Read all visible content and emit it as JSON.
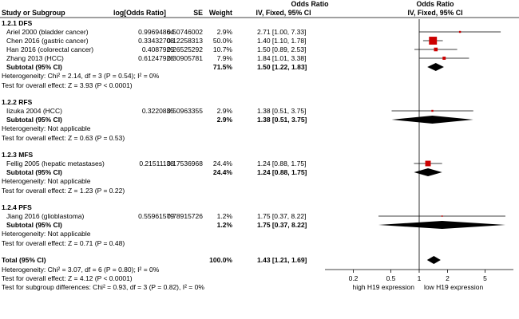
{
  "colors": {
    "marker": "#cc0000",
    "diamond": "#000000",
    "line": "#000000"
  },
  "header": {
    "col_study": "Study or Subgroup",
    "col_log": "log[Odds Ratio]",
    "col_se": "SE",
    "col_weight": "Weight",
    "col_or_top": "Odds Ratio",
    "col_or_sub": "IV, Fixed, 95% CI",
    "plot_top": "Odds Ratio",
    "plot_sub": "IV, Fixed, 95% CI"
  },
  "axis": {
    "ticks": [
      "0.2",
      "0.5",
      "1",
      "2",
      "5"
    ],
    "left_label": "high H19 expression",
    "right_label": "low H19 expression"
  },
  "chart_data": {
    "type": "forest",
    "scale": "log",
    "xlim": [
      0.1,
      10
    ],
    "null_value": 1,
    "subgroups": [
      {
        "title": "1.2.1 DFS",
        "studies": [
          {
            "name": "Ariel 2000 (bladder cancer)",
            "log_or": "0.99694864",
            "se": "0.50746002",
            "weight": "2.9%",
            "ci_text": "2.71 [1.00, 7.33]",
            "or": 2.71,
            "lo": 1.0,
            "hi": 7.33,
            "w": 2.9
          },
          {
            "name": "Chen 2016 (gastric cancer)",
            "log_or": "0.33432708",
            "se": "0.12258313",
            "weight": "50.0%",
            "ci_text": "1.40 [1.10, 1.78]",
            "or": 1.4,
            "lo": 1.1,
            "hi": 1.78,
            "w": 50.0
          },
          {
            "name": "Han 2016 (colorectal cancer)",
            "log_or": "0.4087929",
            "se": "0.26525292",
            "weight": "10.7%",
            "ci_text": "1.50 [0.89, 2.53]",
            "or": 1.5,
            "lo": 0.89,
            "hi": 2.53,
            "w": 10.7
          },
          {
            "name": "Zhang 2013 (HCC)",
            "log_or": "0.61247928",
            "se": "0.30905781",
            "weight": "7.9%",
            "ci_text": "1.84 [1.01, 3.38]",
            "or": 1.84,
            "lo": 1.01,
            "hi": 3.38,
            "w": 7.9
          }
        ],
        "subtotal": {
          "label": "Subtotal (95% CI)",
          "weight": "71.5%",
          "ci_text": "1.50 [1.22, 1.83]",
          "or": 1.5,
          "lo": 1.22,
          "hi": 1.83
        },
        "heterogeneity": "Heterogeneity: Chi² = 2.14, df = 3 (P = 0.54); I² = 0%",
        "overall_test": "Test for overall effect: Z = 3.93 (P < 0.0001)"
      },
      {
        "title": "1.2.2 RFS",
        "studies": [
          {
            "name": "Iizuka 2004 (HCC)",
            "log_or": "0.3220835",
            "se": "0.50963355",
            "weight": "2.9%",
            "ci_text": "1.38 [0.51, 3.75]",
            "or": 1.38,
            "lo": 0.51,
            "hi": 3.75,
            "w": 2.9
          }
        ],
        "subtotal": {
          "label": "Subtotal (95% CI)",
          "weight": "2.9%",
          "ci_text": "1.38 [0.51, 3.75]",
          "or": 1.38,
          "lo": 0.51,
          "hi": 3.75
        },
        "heterogeneity": "Heterogeneity: Not applicable",
        "overall_test": "Test for overall effect: Z = 0.63 (P = 0.53)"
      },
      {
        "title": "1.2.3 MFS",
        "studies": [
          {
            "name": "Fellig 2005 (hepatic metastases)",
            "log_or": "0.21511138",
            "se": "0.17536968",
            "weight": "24.4%",
            "ci_text": "1.24 [0.88, 1.75]",
            "or": 1.24,
            "lo": 0.88,
            "hi": 1.75,
            "w": 24.4
          }
        ],
        "subtotal": {
          "label": "Subtotal (95% CI)",
          "weight": "24.4%",
          "ci_text": "1.24 [0.88, 1.75]",
          "or": 1.24,
          "lo": 0.88,
          "hi": 1.75
        },
        "heterogeneity": "Heterogeneity: Not applicable",
        "overall_test": "Test for overall effect: Z = 1.23 (P = 0.22)"
      },
      {
        "title": "1.2.4 PFS",
        "studies": [
          {
            "name": "Jiang 2016 (glioblastoma)",
            "log_or": "0.55961579",
            "se": "0.78915726",
            "weight": "1.2%",
            "ci_text": "1.75 [0.37, 8.22]",
            "or": 1.75,
            "lo": 0.37,
            "hi": 8.22,
            "w": 1.2
          }
        ],
        "subtotal": {
          "label": "Subtotal (95% CI)",
          "weight": "1.2%",
          "ci_text": "1.75 [0.37, 8.22]",
          "or": 1.75,
          "lo": 0.37,
          "hi": 8.22
        },
        "heterogeneity": "Heterogeneity: Not applicable",
        "overall_test": "Test for overall effect: Z = 0.71 (P = 0.48)"
      }
    ],
    "total": {
      "label": "Total (95% CI)",
      "weight": "100.0%",
      "ci_text": "1.43 [1.21, 1.69]",
      "or": 1.43,
      "lo": 1.21,
      "hi": 1.69
    },
    "total_heterogeneity": "Heterogeneity: Chi² = 3.07, df = 6 (P = 0.80); I² = 0%",
    "total_overall_test": "Test for overall effect: Z = 4.12 (P < 0.0001)",
    "subgroup_differences": "Test for subgroup differences: Chi² = 0.93, df = 3 (P = 0.82), I² = 0%"
  }
}
